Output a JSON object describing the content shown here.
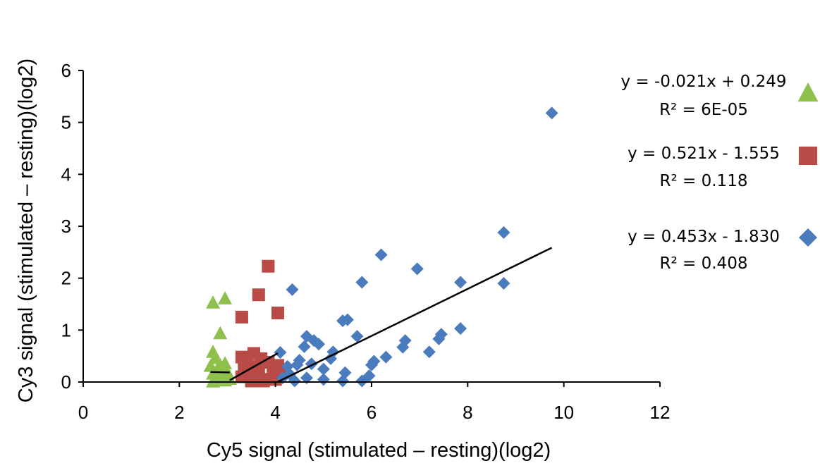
{
  "chart_data": {
    "type": "scatter",
    "title": "",
    "xlabel": "Cy5 signal (stimulated – resting)(log2)",
    "ylabel": "Cy3 signal (stimulated – resting)(log2)",
    "xlim": [
      0,
      12
    ],
    "ylim": [
      0,
      6
    ],
    "x_ticks": [
      "0",
      "2",
      "4",
      "6",
      "8",
      "10",
      "12"
    ],
    "y_ticks": [
      "0",
      "1",
      "2",
      "3",
      "4",
      "5",
      "6"
    ],
    "grid": false,
    "legend_position": "right",
    "series": [
      {
        "marker": "triangle",
        "color": "#8fc04d",
        "trendline": {
          "slope": -0.021,
          "intercept": 0.249,
          "x_range": [
            2.65,
            3.05
          ]
        },
        "equation": "y = -0.021x + 0.249",
        "r2": "R² = 6E-05",
        "points": [
          [
            2.7,
            1.52
          ],
          [
            2.95,
            1.6
          ],
          [
            2.85,
            0.93
          ],
          [
            2.7,
            0.57
          ],
          [
            2.75,
            0.45
          ],
          [
            2.65,
            0.3
          ],
          [
            2.95,
            0.35
          ],
          [
            2.8,
            0.25
          ],
          [
            2.7,
            0.15
          ],
          [
            2.9,
            0.12
          ],
          [
            3.0,
            0.18
          ],
          [
            2.75,
            0.05
          ],
          [
            2.85,
            0.08
          ],
          [
            2.95,
            0.02
          ],
          [
            3.05,
            0.05
          ],
          [
            2.7,
            0.0
          ],
          [
            2.85,
            0.32
          ],
          [
            3.0,
            0.1
          ]
        ]
      },
      {
        "marker": "square",
        "color": "#b94a45",
        "trendline": {
          "slope": 0.521,
          "intercept": -1.555,
          "x_range": [
            3.05,
            4.05
          ]
        },
        "equation": "y = 0.521x - 1.555",
        "r2": "R² = 0.118",
        "points": [
          [
            3.85,
            2.23
          ],
          [
            3.65,
            1.68
          ],
          [
            3.3,
            1.25
          ],
          [
            4.05,
            1.33
          ],
          [
            3.3,
            0.48
          ],
          [
            3.55,
            0.55
          ],
          [
            3.4,
            0.42
          ],
          [
            3.7,
            0.45
          ],
          [
            3.85,
            0.38
          ],
          [
            4.05,
            0.32
          ],
          [
            3.35,
            0.25
          ],
          [
            3.5,
            0.3
          ],
          [
            3.65,
            0.22
          ],
          [
            3.95,
            0.18
          ],
          [
            4.1,
            0.15
          ],
          [
            3.3,
            0.1
          ],
          [
            3.45,
            0.12
          ],
          [
            3.6,
            0.08
          ],
          [
            3.8,
            0.05
          ],
          [
            3.5,
            0.02
          ],
          [
            3.75,
            0.02
          ],
          [
            4.0,
            0.05
          ]
        ]
      },
      {
        "marker": "diamond",
        "color": "#4a7bbd",
        "trendline": {
          "slope": 0.453,
          "intercept": -1.83,
          "x_range": [
            4.04,
            9.75
          ]
        },
        "equation": "y = 0.453x - 1.830",
        "r2": "R² = 0.408",
        "points": [
          [
            9.75,
            5.18
          ],
          [
            8.75,
            2.88
          ],
          [
            8.75,
            1.9
          ],
          [
            7.85,
            1.92
          ],
          [
            6.95,
            2.18
          ],
          [
            6.2,
            2.45
          ],
          [
            5.8,
            1.92
          ],
          [
            4.35,
            1.78
          ],
          [
            5.4,
            1.18
          ],
          [
            5.5,
            1.2
          ],
          [
            5.7,
            0.88
          ],
          [
            7.85,
            1.03
          ],
          [
            7.45,
            0.92
          ],
          [
            7.4,
            0.83
          ],
          [
            6.7,
            0.8
          ],
          [
            6.65,
            0.67
          ],
          [
            7.2,
            0.58
          ],
          [
            4.65,
            0.88
          ],
          [
            4.8,
            0.8
          ],
          [
            4.9,
            0.73
          ],
          [
            4.6,
            0.68
          ],
          [
            4.1,
            0.57
          ],
          [
            5.2,
            0.58
          ],
          [
            5.15,
            0.45
          ],
          [
            6.05,
            0.4
          ],
          [
            6.3,
            0.48
          ],
          [
            4.5,
            0.42
          ],
          [
            4.75,
            0.35
          ],
          [
            4.45,
            0.33
          ],
          [
            4.25,
            0.3
          ],
          [
            5.0,
            0.25
          ],
          [
            6.0,
            0.33
          ],
          [
            5.45,
            0.18
          ],
          [
            4.3,
            0.15
          ],
          [
            5.95,
            0.12
          ],
          [
            4.65,
            0.08
          ],
          [
            5.0,
            0.05
          ],
          [
            5.4,
            0.02
          ],
          [
            5.8,
            0.02
          ],
          [
            4.4,
            0.02
          ],
          [
            4.15,
            0.08
          ]
        ]
      }
    ]
  }
}
